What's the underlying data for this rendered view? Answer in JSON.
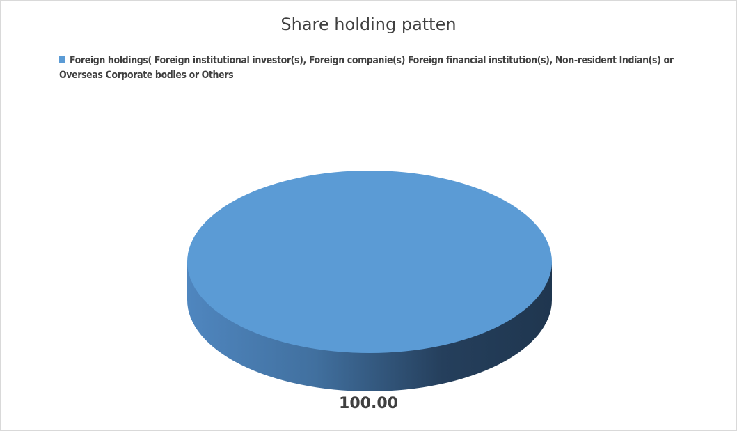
{
  "chart_data": {
    "type": "pie",
    "style": "3d",
    "title": "Share holding patten",
    "categories": [
      "Foreign holdings( Foreign institutional investor(s), Foreign companie(s) Foreign financial institution(s), Non-resident Indian(s) or Overseas Corporate bodies or Others"
    ],
    "values": [
      100.0
    ],
    "data_labels": [
      "100.00"
    ],
    "colors": [
      "#5b9bd5"
    ],
    "legend_position": "top"
  }
}
